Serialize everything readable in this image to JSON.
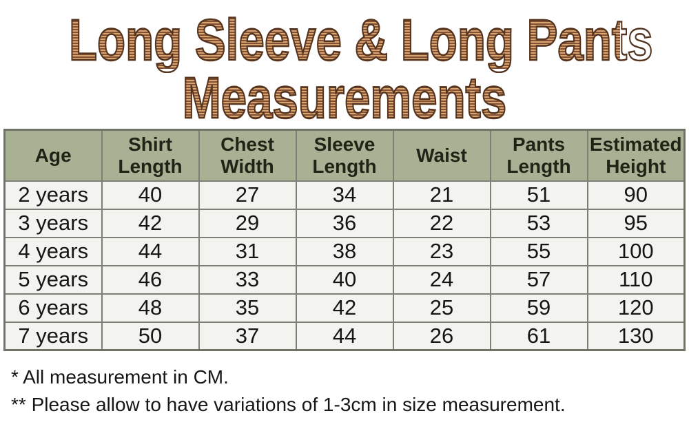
{
  "title": {
    "line1": "Long Sleeve & Long Pants",
    "line2": "Measurements"
  },
  "chart_data": {
    "type": "table",
    "title": "Long Sleeve & Long Pants Measurements",
    "columns": [
      "Age",
      "Shirt Length",
      "Chest Width",
      "Sleeve Length",
      "Waist",
      "Pants Length",
      "Estimated Height"
    ],
    "rows": [
      [
        "2 years",
        40,
        27,
        34,
        21,
        51,
        90
      ],
      [
        "3 years",
        42,
        29,
        36,
        22,
        53,
        95
      ],
      [
        "4 years",
        44,
        31,
        38,
        23,
        55,
        100
      ],
      [
        "5 years",
        46,
        33,
        40,
        24,
        57,
        110
      ],
      [
        "6 years",
        48,
        35,
        42,
        25,
        59,
        120
      ],
      [
        "7 years",
        50,
        37,
        44,
        26,
        61,
        130
      ]
    ]
  },
  "notes": [
    "* All measurement in CM.",
    "** Please allow to have variations of 1-3cm in size measurement."
  ],
  "colors": {
    "header_bg": "#a8b194",
    "header_text": "#1f2416",
    "cell_bg": "#f3f3ef",
    "cell_text": "#161616",
    "border": "#7d8076",
    "outer_border": "#6f7368",
    "title_stripe_light": "#d7a673",
    "title_stripe_dark": "#845034",
    "title_outline": "#54341f"
  }
}
